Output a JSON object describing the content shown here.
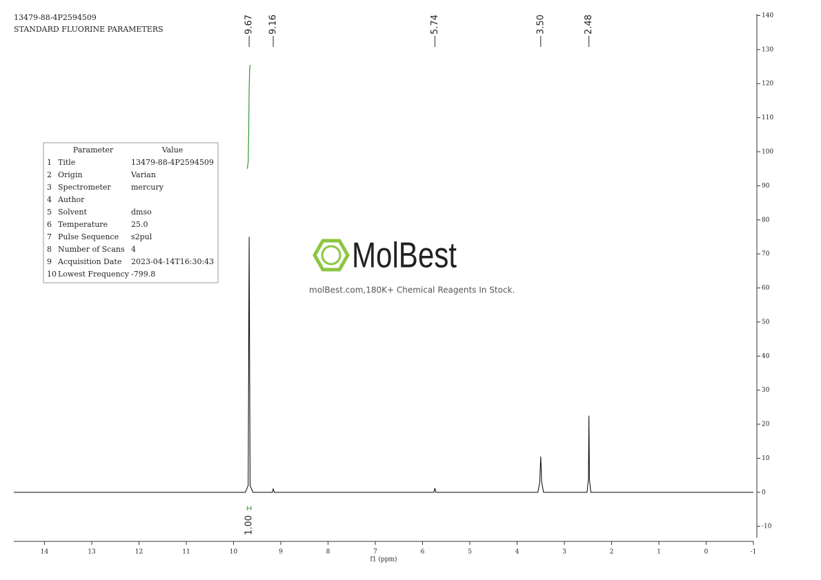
{
  "chart_data": {
    "type": "line",
    "title": "13479-88-4P2594509",
    "subtitle": "STANDARD FLUORINE PARAMETERS",
    "x_label": "f1 (ppm)",
    "color": "#000000",
    "x": [
      14.65,
      9.75,
      9.69,
      9.67,
      9.65,
      9.59,
      9.18,
      9.16,
      9.14,
      5.76,
      5.74,
      5.72,
      3.56,
      3.52,
      3.5,
      3.48,
      3.44,
      2.52,
      2.49,
      2.48,
      2.47,
      2.44,
      -1
    ],
    "values": [
      0,
      0,
      2,
      75,
      2,
      0,
      0,
      1,
      0,
      0,
      1.2,
      0,
      0,
      3,
      10.5,
      3,
      0,
      0,
      4,
      22.5,
      4,
      0,
      0
    ],
    "xlim": [
      14.65,
      -1
    ],
    "xticks": [
      14,
      13,
      12,
      11,
      10,
      9,
      8,
      7,
      6,
      5,
      4,
      3,
      2,
      1,
      0,
      -1
    ],
    "ylim": [
      -13.4,
      140.5
    ],
    "yticks": [
      -10,
      0,
      10,
      20,
      30,
      40,
      50,
      60,
      70,
      80,
      90,
      100,
      110,
      120,
      130,
      140
    ],
    "peaks": [
      {
        "value": 9.67,
        "label": "9.67"
      },
      {
        "value": 9.16,
        "label": "9.16"
      },
      {
        "value": 5.74,
        "label": "5.74"
      },
      {
        "value": 3.5,
        "label": "3.50"
      },
      {
        "value": 2.48,
        "label": "2.48"
      }
    ],
    "integral_curve": {
      "color": "#2e9a2e",
      "x": [
        9.71,
        9.69,
        9.68,
        9.67,
        9.66,
        9.65
      ],
      "values": [
        95,
        97,
        105,
        118,
        124,
        125.5
      ]
    },
    "integrals": [
      {
        "from": 9.71,
        "to": 9.63,
        "value": 1.0,
        "label": "1.00"
      }
    ]
  },
  "parameters": {
    "header": [
      "Parameter",
      "Value"
    ],
    "rows": [
      [
        "1",
        "Title",
        "13479-88-4P2594509"
      ],
      [
        "2",
        "Origin",
        "Varian"
      ],
      [
        "3",
        "Spectrometer",
        "mercury"
      ],
      [
        "4",
        "Author"
      ],
      [
        "5",
        "Solvent",
        "dmso"
      ],
      [
        "6",
        "Temperature",
        "25.0"
      ],
      [
        "7",
        "Pulse Sequence",
        "s2pul"
      ],
      [
        "8",
        "Number of Scans",
        "4"
      ],
      [
        "9",
        "Acquisition Date",
        "2023-04-14T16:30:43"
      ],
      [
        "10",
        "Lowest Frequency",
        "-799.8"
      ]
    ]
  },
  "watermark": {
    "logo": "MolBest",
    "tagline": "molBest.com,180K+ Chemical Reagents In Stock."
  }
}
